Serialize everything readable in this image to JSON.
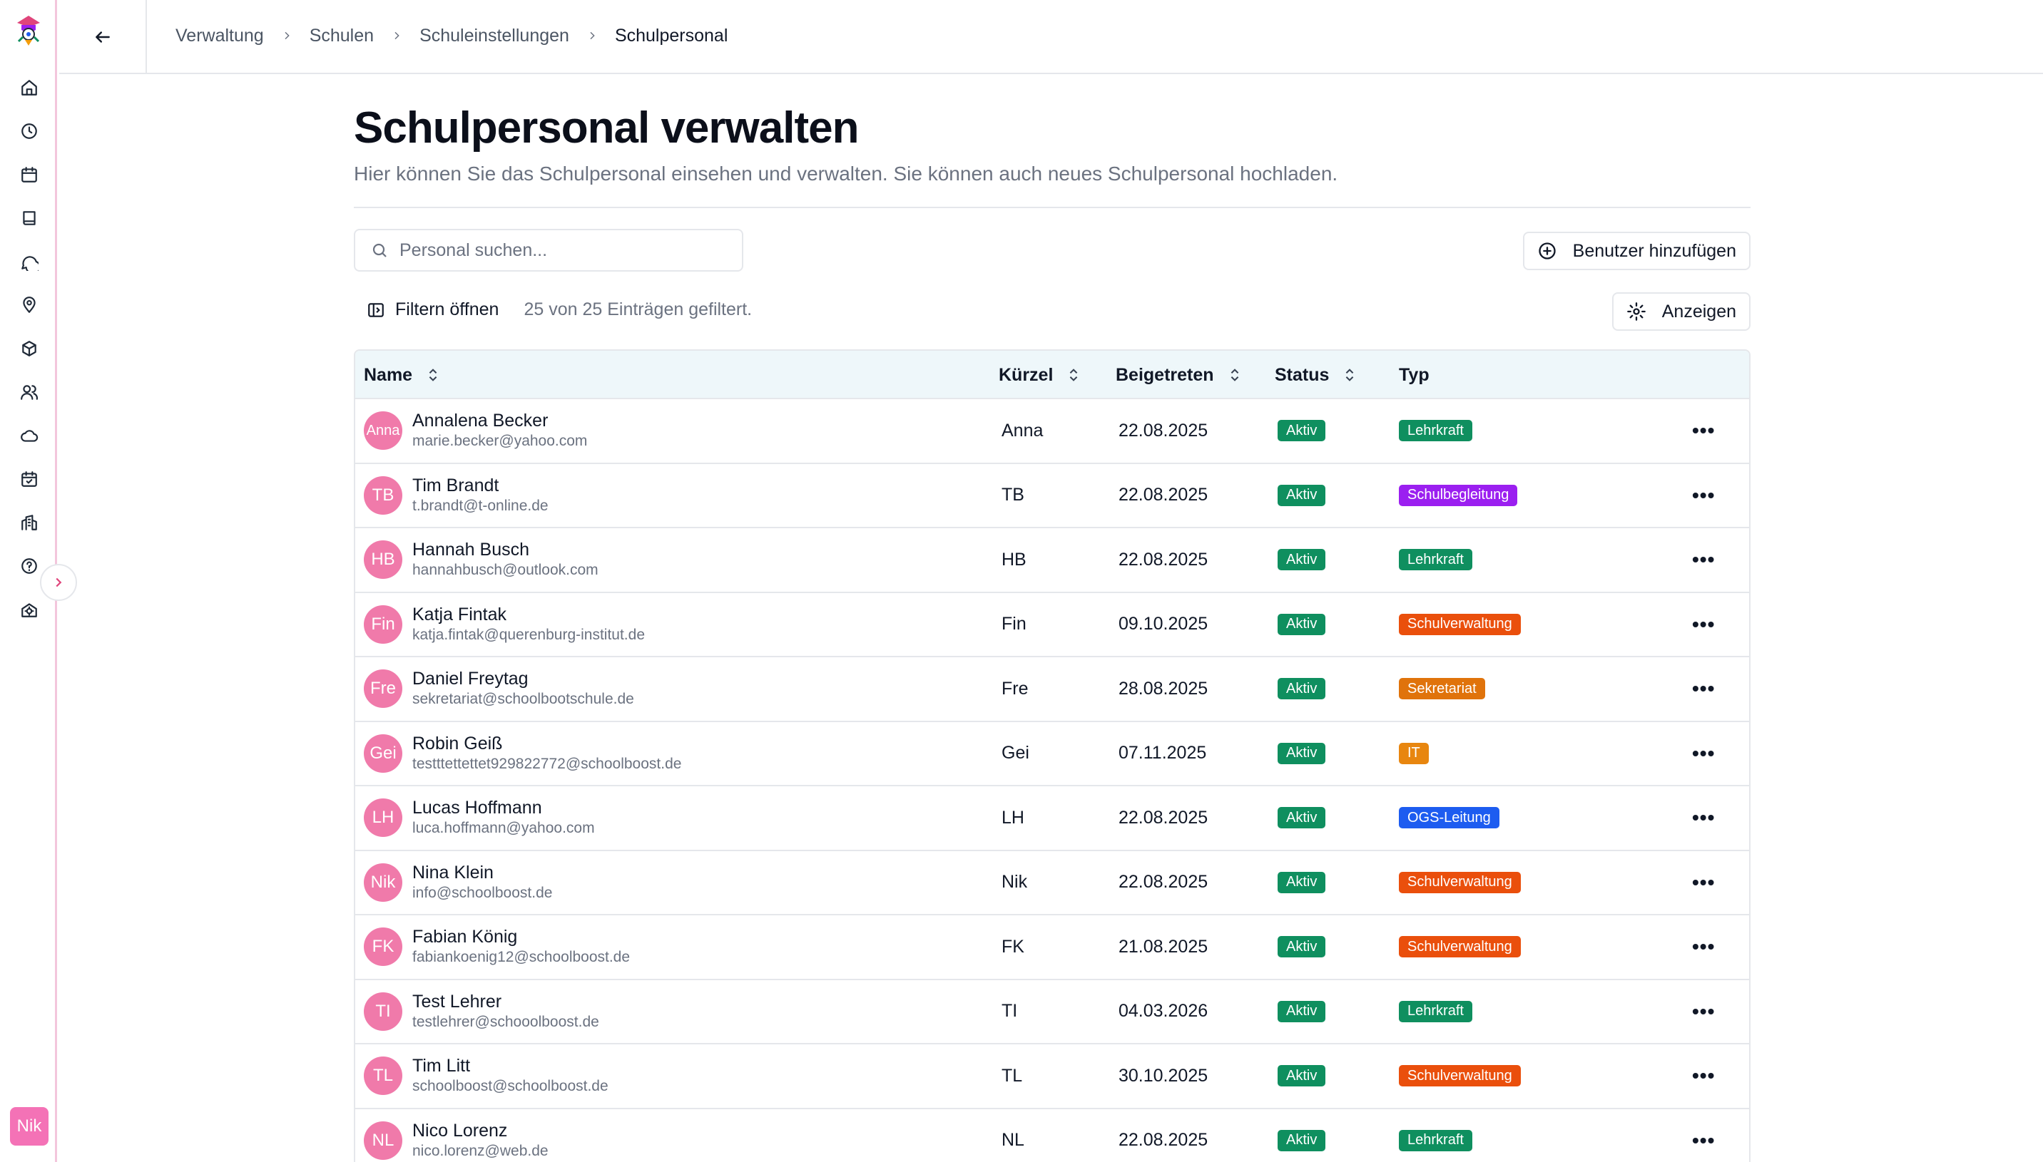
{
  "breadcrumb": [
    "Verwaltung",
    "Schulen",
    "Schuleinstellungen",
    "Schulpersonal"
  ],
  "page": {
    "title": "Schulpersonal verwalten",
    "subtitle": "Hier können Sie das Schulpersonal einsehen und verwalten. Sie können auch neues Schulpersonal hochladen."
  },
  "search": {
    "placeholder": "Personal suchen..."
  },
  "buttons": {
    "add_user": "Benutzer hinzufügen",
    "show": "Anzeigen"
  },
  "filter": {
    "open_label": "Filtern öffnen",
    "count_text": "25 von 25 Einträgen gefiltert."
  },
  "table": {
    "headers": {
      "name": "Name",
      "short": "Kürzel",
      "joined": "Beigetreten",
      "status": "Status",
      "type": "Typ"
    },
    "rows": [
      {
        "initials": "Anna",
        "name": "Annalena Becker",
        "email": "marie.becker@yahoo.com",
        "short": "Anna",
        "joined": "22.08.2025",
        "status": "Aktiv",
        "type": "Lehrkraft",
        "type_color": "#0f8f5f"
      },
      {
        "initials": "TB",
        "name": "Tim Brandt",
        "email": "t.brandt@t-online.de",
        "short": "TB",
        "joined": "22.08.2025",
        "status": "Aktiv",
        "type": "Schulbegleitung",
        "type_color": "#9b1ff0"
      },
      {
        "initials": "HB",
        "name": "Hannah Busch",
        "email": "hannahbusch@outlook.com",
        "short": "HB",
        "joined": "22.08.2025",
        "status": "Aktiv",
        "type": "Lehrkraft",
        "type_color": "#0f8f5f"
      },
      {
        "initials": "Fin",
        "name": "Katja Fintak",
        "email": "katja.fintak@querenburg-institut.de",
        "short": "Fin",
        "joined": "09.10.2025",
        "status": "Aktiv",
        "type": "Schulverwaltung",
        "type_color": "#ea4f0c"
      },
      {
        "initials": "Fre",
        "name": "Daniel Freytag",
        "email": "sekretariat@schoolbootschule.de",
        "short": "Fre",
        "joined": "28.08.2025",
        "status": "Aktiv",
        "type": "Sekretariat",
        "type_color": "#e0730b"
      },
      {
        "initials": "Gei",
        "name": "Robin Geiß",
        "email": "testttettettet929822772@schoolboost.de",
        "short": "Gei",
        "joined": "07.11.2025",
        "status": "Aktiv",
        "type": "IT",
        "type_color": "#e8860f"
      },
      {
        "initials": "LH",
        "name": "Lucas Hoffmann",
        "email": "luca.hoffmann@yahoo.com",
        "short": "LH",
        "joined": "22.08.2025",
        "status": "Aktiv",
        "type": "OGS-Leitung",
        "type_color": "#1d5cf0"
      },
      {
        "initials": "Nik",
        "name": "Nina Klein",
        "email": "info@schoolboost.de",
        "short": "Nik",
        "joined": "22.08.2025",
        "status": "Aktiv",
        "type": "Schulverwaltung",
        "type_color": "#ea4f0c"
      },
      {
        "initials": "FK",
        "name": "Fabian König",
        "email": "fabiankoenig12@schoolboost.de",
        "short": "FK",
        "joined": "21.08.2025",
        "status": "Aktiv",
        "type": "Schulverwaltung",
        "type_color": "#ea4f0c"
      },
      {
        "initials": "TI",
        "name": "Test Lehrer",
        "email": "testlehrer@schooolboost.de",
        "short": "TI",
        "joined": "04.03.2026",
        "status": "Aktiv",
        "type": "Lehrkraft",
        "type_color": "#0f8f5f"
      },
      {
        "initials": "TL",
        "name": "Tim Litt",
        "email": "schoolboost@schoolboost.de",
        "short": "TL",
        "joined": "30.10.2025",
        "status": "Aktiv",
        "type": "Schulverwaltung",
        "type_color": "#ea4f0c"
      },
      {
        "initials": "NL",
        "name": "Nico Lorenz",
        "email": "nico.lorenz@web.de",
        "short": "NL",
        "joined": "22.08.2025",
        "status": "Aktiv",
        "type": "Lehrkraft",
        "type_color": "#0f8f5f"
      }
    ]
  },
  "colors": {
    "status_active": "#0f8f5f",
    "avatar": "#f07aaa",
    "accent": "#e0457b"
  },
  "user": {
    "initials": "Nik"
  }
}
